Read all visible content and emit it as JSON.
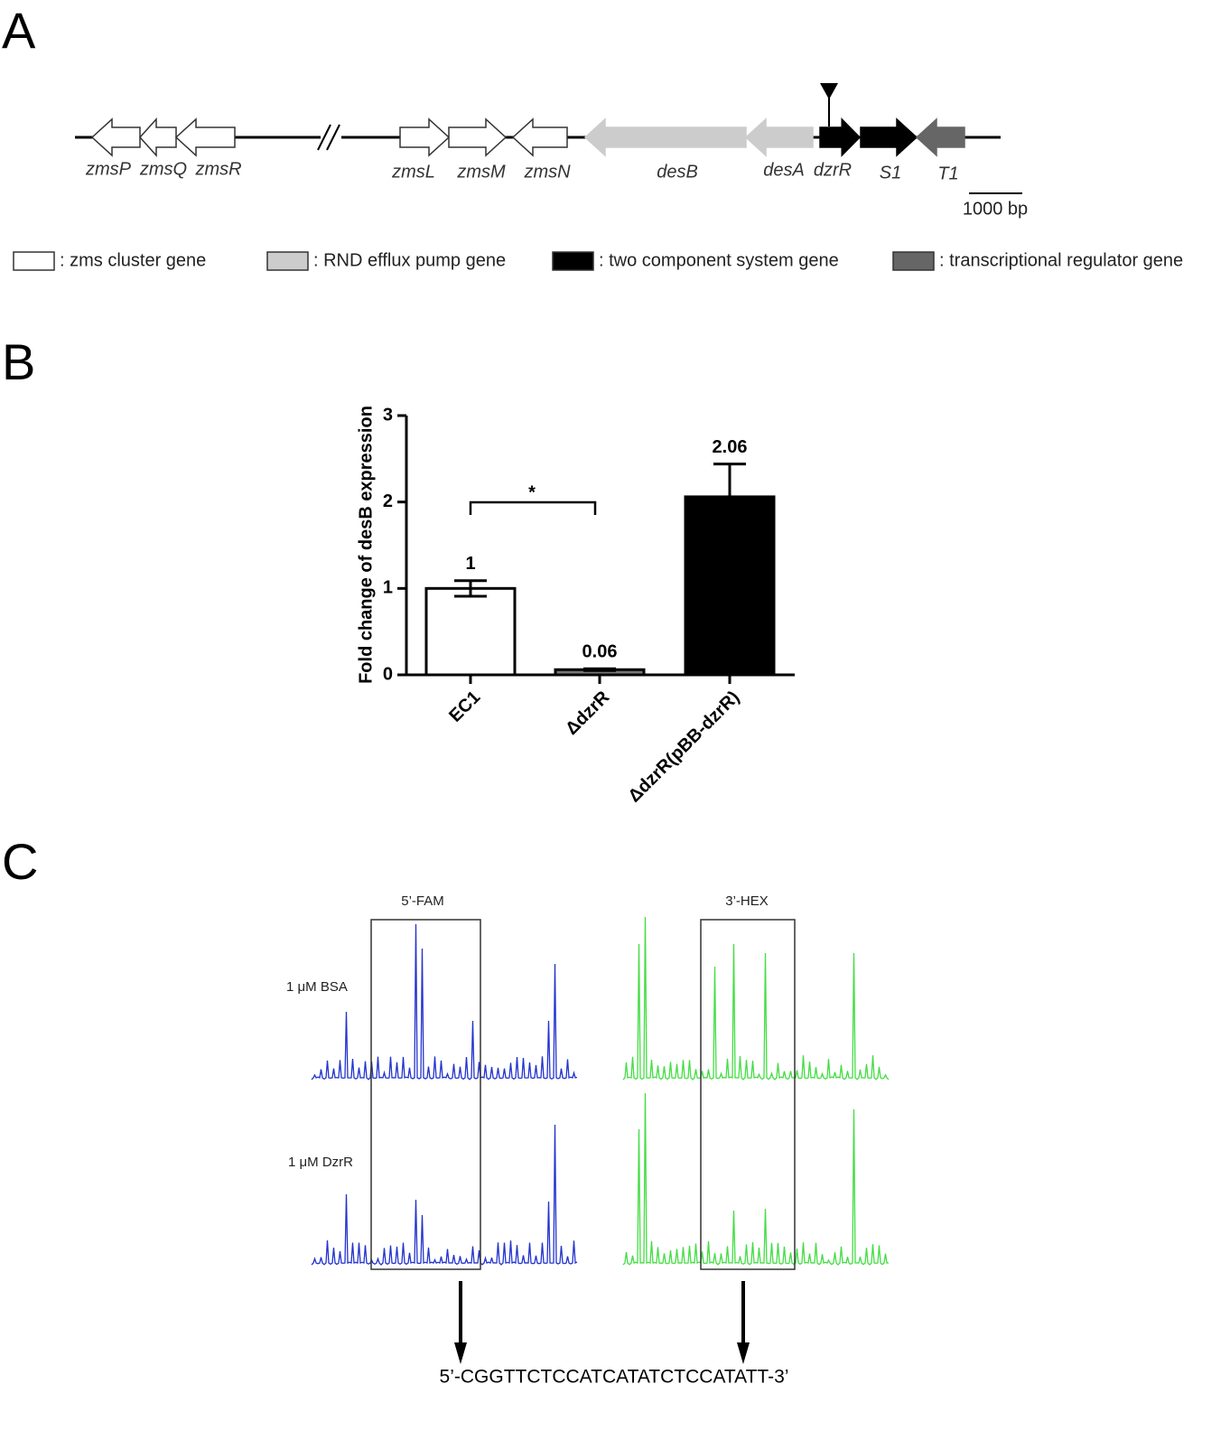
{
  "panel_labels": [
    "A",
    "B",
    "C"
  ],
  "gene_map": {
    "genes": [
      "zmsP",
      "zmsQ",
      "zmsR",
      "zmsL",
      "zmsM",
      "zmsN",
      "desB",
      "desA",
      "dzrR",
      "S1",
      "T1"
    ],
    "scale_bar": "1000 bp",
    "legend": [
      ": zms cluster gene",
      ": RND efflux pump gene",
      ": two component system gene",
      ": transcriptional regulator gene"
    ]
  },
  "chart_data": {
    "type": "bar",
    "y_label": "Fold change of desB expression",
    "categories": [
      "EC1",
      "ΔdzrR",
      "ΔdzrR(pBB-dzrR)"
    ],
    "values": [
      1,
      0.06,
      2.06
    ],
    "errors": [
      0.09,
      0.01,
      0.38
    ],
    "colors": [
      "#ffffff",
      "#777777",
      "#000000"
    ],
    "annotation": "*",
    "ylim": [
      0,
      3
    ],
    "yticks": [
      0,
      1,
      2,
      3
    ]
  },
  "footprint": {
    "probes": [
      "5’-FAM",
      "3’-HEX"
    ],
    "conditions": [
      "1 μM BSA",
      "1 μM DzrR"
    ],
    "sequence": "5’-CGGTTCTCCATCATATCTCCATATT-3’"
  }
}
